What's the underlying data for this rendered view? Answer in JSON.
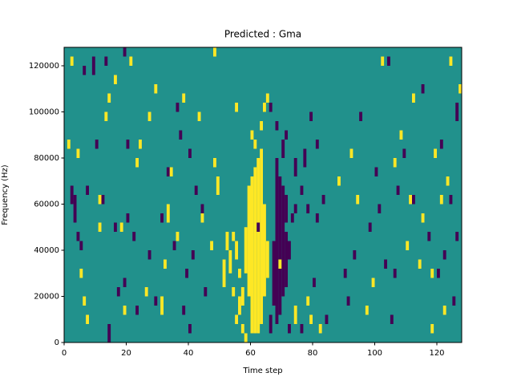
{
  "chart_data": {
    "type": "heatmap",
    "title": "Predicted : Gma",
    "xlabel": "Time step",
    "ylabel": "Frequency (Hz)",
    "xlim": [
      0,
      128
    ],
    "ylim": [
      0,
      128000
    ],
    "xticks": [
      0,
      20,
      40,
      60,
      80,
      100,
      120
    ],
    "yticks": [
      0,
      20000,
      40000,
      60000,
      80000,
      100000,
      120000
    ],
    "colors": [
      "#440154",
      "#21918c",
      "#fde725"
    ],
    "fill_value": 1,
    "cells": [
      [
        60,
        4000,
        72000,
        2
      ],
      [
        61,
        4000,
        76000,
        2
      ],
      [
        62,
        4000,
        80000,
        2
      ],
      [
        63,
        8000,
        76000,
        2
      ],
      [
        59,
        20000,
        68000,
        2
      ],
      [
        58,
        30000,
        50000,
        2
      ],
      [
        64,
        20000,
        60000,
        2
      ],
      [
        65,
        28000,
        44000,
        2
      ],
      [
        61,
        84000,
        88000,
        2
      ],
      [
        63,
        92000,
        96000,
        2
      ],
      [
        64,
        100000,
        104000,
        2
      ],
      [
        65,
        104000,
        108000,
        2
      ],
      [
        63,
        76000,
        84000,
        2
      ],
      [
        68,
        8000,
        80000,
        0
      ],
      [
        69,
        12000,
        72000,
        0
      ],
      [
        70,
        20000,
        68000,
        0
      ],
      [
        67,
        16000,
        44000,
        0
      ],
      [
        71,
        24000,
        48000,
        0
      ],
      [
        70,
        80000,
        88000,
        0
      ],
      [
        66,
        100000,
        104000,
        0
      ],
      [
        71,
        52000,
        64000,
        0
      ],
      [
        72,
        36000,
        44000,
        0
      ],
      [
        73,
        52000,
        56000,
        0
      ],
      [
        74,
        56000,
        60000,
        0
      ],
      [
        76,
        4000,
        8000,
        0
      ],
      [
        72,
        4000,
        8000,
        0
      ],
      [
        66,
        4000,
        12000,
        0
      ],
      [
        62,
        48000,
        52000,
        0
      ],
      [
        68,
        92000,
        96000,
        0
      ],
      [
        71,
        88000,
        92000,
        0
      ],
      [
        74,
        72000,
        80000,
        0
      ],
      [
        77,
        76000,
        84000,
        0
      ],
      [
        76,
        64000,
        68000,
        0
      ],
      [
        78,
        56000,
        60000,
        0
      ],
      [
        81,
        52000,
        56000,
        0
      ],
      [
        80,
        24000,
        28000,
        0
      ],
      [
        81,
        84000,
        88000,
        0
      ],
      [
        84,
        8000,
        12000,
        0
      ],
      [
        83,
        60000,
        64000,
        0
      ],
      [
        79,
        96000,
        100000,
        0
      ],
      [
        51,
        24000,
        36000,
        2
      ],
      [
        52,
        40000,
        48000,
        2
      ],
      [
        53,
        30000,
        40000,
        2
      ],
      [
        54,
        44000,
        48000,
        2
      ],
      [
        55,
        8000,
        12000,
        2
      ],
      [
        56,
        12000,
        20000,
        2
      ],
      [
        57,
        16000,
        24000,
        2
      ],
      [
        56,
        28000,
        32000,
        2
      ],
      [
        55,
        36000,
        44000,
        2
      ],
      [
        54,
        20000,
        24000,
        2
      ],
      [
        49,
        64000,
        72000,
        2
      ],
      [
        48,
        76000,
        80000,
        2
      ],
      [
        58,
        0,
        4000,
        2
      ],
      [
        57,
        4000,
        8000,
        2
      ],
      [
        60,
        88000,
        92000,
        2
      ],
      [
        55,
        100000,
        104000,
        2
      ],
      [
        69,
        32000,
        36000,
        2
      ],
      [
        74,
        8000,
        16000,
        2
      ],
      [
        78,
        16000,
        20000,
        2
      ],
      [
        79,
        8000,
        12000,
        2
      ],
      [
        82,
        4000,
        8000,
        2
      ],
      [
        88,
        68000,
        72000,
        2
      ],
      [
        3,
        52000,
        64000,
        0
      ],
      [
        4,
        44000,
        48000,
        0
      ],
      [
        5,
        40000,
        44000,
        0
      ],
      [
        2,
        60000,
        68000,
        0
      ],
      [
        7,
        64000,
        68000,
        0
      ],
      [
        6,
        116000,
        120000,
        0
      ],
      [
        9,
        116000,
        124000,
        0
      ],
      [
        13,
        120000,
        124000,
        0
      ],
      [
        14,
        0,
        8000,
        0
      ],
      [
        12,
        60000,
        64000,
        0
      ],
      [
        10,
        84000,
        88000,
        0
      ],
      [
        16,
        48000,
        52000,
        0
      ],
      [
        17,
        20000,
        24000,
        0
      ],
      [
        19,
        24000,
        28000,
        0
      ],
      [
        20,
        52000,
        56000,
        0
      ],
      [
        19,
        124000,
        128000,
        0
      ],
      [
        23,
        12000,
        16000,
        0
      ],
      [
        22,
        44000,
        48000,
        0
      ],
      [
        27,
        36000,
        40000,
        0
      ],
      [
        29,
        16000,
        20000,
        0
      ],
      [
        31,
        52000,
        56000,
        0
      ],
      [
        33,
        72000,
        76000,
        0
      ],
      [
        35,
        40000,
        44000,
        0
      ],
      [
        36,
        100000,
        104000,
        0
      ],
      [
        37,
        88000,
        92000,
        0
      ],
      [
        38,
        12000,
        16000,
        0
      ],
      [
        39,
        28000,
        32000,
        0
      ],
      [
        41,
        36000,
        40000,
        0
      ],
      [
        40,
        80000,
        84000,
        0
      ],
      [
        42,
        64000,
        68000,
        0
      ],
      [
        44,
        56000,
        60000,
        0
      ],
      [
        45,
        20000,
        24000,
        0
      ],
      [
        40,
        4000,
        8000,
        0
      ],
      [
        20,
        84000,
        88000,
        0
      ],
      [
        1,
        84000,
        88000,
        2
      ],
      [
        2,
        120000,
        124000,
        2
      ],
      [
        4,
        80000,
        84000,
        2
      ],
      [
        5,
        28000,
        32000,
        2
      ],
      [
        6,
        16000,
        20000,
        2
      ],
      [
        7,
        8000,
        12000,
        2
      ],
      [
        11,
        48000,
        52000,
        2
      ],
      [
        11,
        60000,
        64000,
        2
      ],
      [
        13,
        96000,
        100000,
        2
      ],
      [
        14,
        104000,
        108000,
        2
      ],
      [
        16,
        112000,
        116000,
        2
      ],
      [
        18,
        48000,
        52000,
        2
      ],
      [
        19,
        12000,
        16000,
        2
      ],
      [
        21,
        120000,
        124000,
        2
      ],
      [
        23,
        76000,
        80000,
        2
      ],
      [
        24,
        84000,
        88000,
        2
      ],
      [
        26,
        20000,
        24000,
        2
      ],
      [
        27,
        96000,
        100000,
        2
      ],
      [
        29,
        108000,
        112000,
        2
      ],
      [
        31,
        12000,
        20000,
        2
      ],
      [
        32,
        32000,
        36000,
        2
      ],
      [
        33,
        52000,
        60000,
        2
      ],
      [
        34,
        72000,
        76000,
        2
      ],
      [
        36,
        44000,
        48000,
        2
      ],
      [
        38,
        104000,
        108000,
        2
      ],
      [
        43,
        96000,
        100000,
        2
      ],
      [
        44,
        52000,
        56000,
        2
      ],
      [
        48,
        124000,
        128000,
        2
      ],
      [
        47,
        40000,
        44000,
        2
      ],
      [
        90,
        28000,
        32000,
        0
      ],
      [
        91,
        16000,
        20000,
        0
      ],
      [
        93,
        36000,
        40000,
        0
      ],
      [
        95,
        96000,
        100000,
        0
      ],
      [
        98,
        48000,
        52000,
        0
      ],
      [
        100,
        72000,
        76000,
        0
      ],
      [
        101,
        56000,
        60000,
        0
      ],
      [
        103,
        32000,
        36000,
        0
      ],
      [
        104,
        120000,
        124000,
        0
      ],
      [
        105,
        8000,
        12000,
        0
      ],
      [
        106,
        28000,
        32000,
        0
      ],
      [
        107,
        64000,
        68000,
        0
      ],
      [
        109,
        80000,
        84000,
        0
      ],
      [
        112,
        60000,
        64000,
        0
      ],
      [
        115,
        108000,
        112000,
        0
      ],
      [
        117,
        44000,
        48000,
        0
      ],
      [
        120,
        28000,
        32000,
        0
      ],
      [
        121,
        84000,
        88000,
        0
      ],
      [
        122,
        36000,
        40000,
        0
      ],
      [
        124,
        60000,
        64000,
        0
      ],
      [
        126,
        44000,
        48000,
        0
      ],
      [
        126,
        96000,
        104000,
        0
      ],
      [
        125,
        16000,
        20000,
        0
      ],
      [
        92,
        80000,
        84000,
        2
      ],
      [
        94,
        60000,
        64000,
        2
      ],
      [
        97,
        12000,
        16000,
        2
      ],
      [
        99,
        24000,
        28000,
        2
      ],
      [
        102,
        120000,
        124000,
        2
      ],
      [
        106,
        76000,
        80000,
        2
      ],
      [
        108,
        88000,
        92000,
        2
      ],
      [
        110,
        40000,
        44000,
        2
      ],
      [
        111,
        60000,
        64000,
        2
      ],
      [
        112,
        104000,
        108000,
        2
      ],
      [
        114,
        32000,
        36000,
        2
      ],
      [
        115,
        52000,
        56000,
        2
      ],
      [
        118,
        4000,
        8000,
        2
      ],
      [
        119,
        80000,
        84000,
        2
      ],
      [
        121,
        60000,
        64000,
        2
      ],
      [
        122,
        12000,
        16000,
        2
      ],
      [
        123,
        68000,
        72000,
        2
      ],
      [
        124,
        120000,
        124000,
        2
      ],
      [
        127,
        108000,
        112000,
        2
      ],
      [
        118,
        28000,
        32000,
        2
      ]
    ]
  }
}
